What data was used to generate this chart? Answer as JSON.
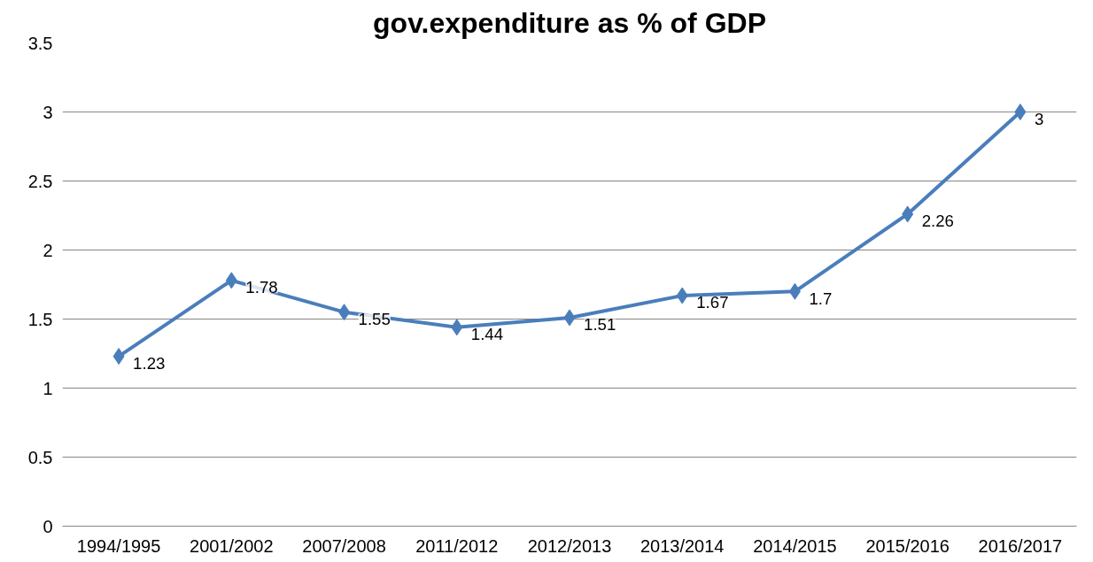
{
  "chart_data": {
    "type": "line",
    "title": "gov.expenditure as % of GDP",
    "categories": [
      "1994/1995",
      "2001/2002",
      "2007/2008",
      "2011/2012",
      "2012/2013",
      "2013/2014",
      "2014/2015",
      "2015/2016",
      "2016/2017"
    ],
    "series": [
      {
        "color": "#4a7ebb",
        "values": [
          1.23,
          1.78,
          1.55,
          1.44,
          1.51,
          1.67,
          1.7,
          2.26,
          3
        ]
      }
    ],
    "ylim": [
      0,
      3.5
    ],
    "yticks": [
      0,
      0.5,
      1,
      1.5,
      2,
      2.5,
      3,
      3.5
    ],
    "grid": "y",
    "marker": "diamond",
    "line_style": "solid",
    "data_labels": true
  }
}
